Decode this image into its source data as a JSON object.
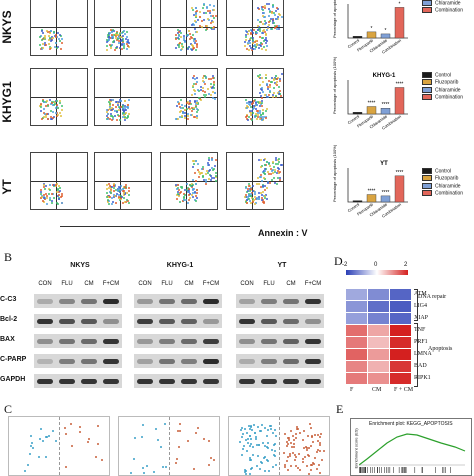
{
  "panelA": {
    "rows": [
      "NKYS",
      "KHYG1",
      "YT"
    ],
    "x_axis_label": "Annexin : V",
    "charts": [
      {
        "title": "",
        "ylabel": "Percentage of apoptosis",
        "significance": [
          "*",
          "*",
          "*"
        ]
      },
      {
        "title": "KHYG-1",
        "ylabel": "Percentage of apoptosis (100%)",
        "significance": [
          "****",
          "****",
          "****"
        ]
      },
      {
        "title": "YT",
        "ylabel": "Percentage of apoptosis (100%)",
        "significance": [
          "****",
          "****",
          "****"
        ]
      }
    ],
    "legend": [
      "Control",
      "Fluzoparib",
      "Chlaramide",
      "Combination"
    ],
    "legend_colors": [
      "#1a1a1a",
      "#d9a441",
      "#7fa0d6",
      "#e2665a"
    ]
  },
  "chart_data": [
    {
      "type": "bar",
      "title": "",
      "categories": [
        "Control",
        "Fluzoparib",
        "Chlaramide",
        "Combination"
      ],
      "values": [
        5,
        18,
        12,
        90
      ],
      "ylabel": "Percentage of apoptosis",
      "ylim": [
        0,
        100
      ]
    },
    {
      "type": "bar",
      "title": "KHYG-1",
      "categories": [
        "Control",
        "Fluzoparib",
        "Chlaramide",
        "Combination"
      ],
      "values": [
        5,
        22,
        17,
        78
      ],
      "ylabel": "Percentage of apoptosis (100%)",
      "ylim": [
        0,
        100
      ]
    },
    {
      "type": "bar",
      "title": "YT",
      "categories": [
        "Control",
        "Fluzoparib",
        "Chlaramide",
        "Combination"
      ],
      "values": [
        4,
        22,
        18,
        77
      ],
      "ylabel": "Percentage of apoptosis (100%)",
      "ylim": [
        0,
        100
      ]
    }
  ],
  "panelB": {
    "letter": "B",
    "groups": [
      "NKYS",
      "KHYG-1",
      "YT"
    ],
    "lanes": [
      "CON",
      "FLU",
      "CM",
      "F+CM"
    ],
    "proteins": [
      "C-C3",
      "Bcl-2",
      "BAX",
      "C-PARP",
      "GAPDH"
    ]
  },
  "panelD": {
    "letter": "D",
    "scale": [
      "-2",
      "0",
      "2"
    ],
    "genes": [
      "ATM",
      "LIG4",
      "XIAP",
      "TNF",
      "PRF1",
      "LMNA",
      "BAD",
      "RIPK1"
    ],
    "columns": [
      "F",
      "CM",
      "F + CM"
    ],
    "group_labels": [
      "DNA repair",
      "Apoptosis"
    ],
    "values": [
      [
        -0.9,
        -1.2,
        -1.6
      ],
      [
        -1.1,
        -1.5,
        -1.7
      ],
      [
        -1.0,
        -1.3,
        -1.6
      ],
      [
        1.3,
        0.8,
        2.0
      ],
      [
        1.2,
        0.6,
        1.9
      ],
      [
        1.4,
        0.9,
        2.0
      ],
      [
        1.1,
        0.7,
        1.8
      ],
      [
        1.2,
        1.0,
        1.9
      ]
    ]
  },
  "panelC": {
    "letter": "C"
  },
  "panelE": {
    "letter": "E",
    "title": "Enrichment plot: KEGG_APOPTOSIS",
    "ylabel": "Enrichment score (ES)"
  }
}
